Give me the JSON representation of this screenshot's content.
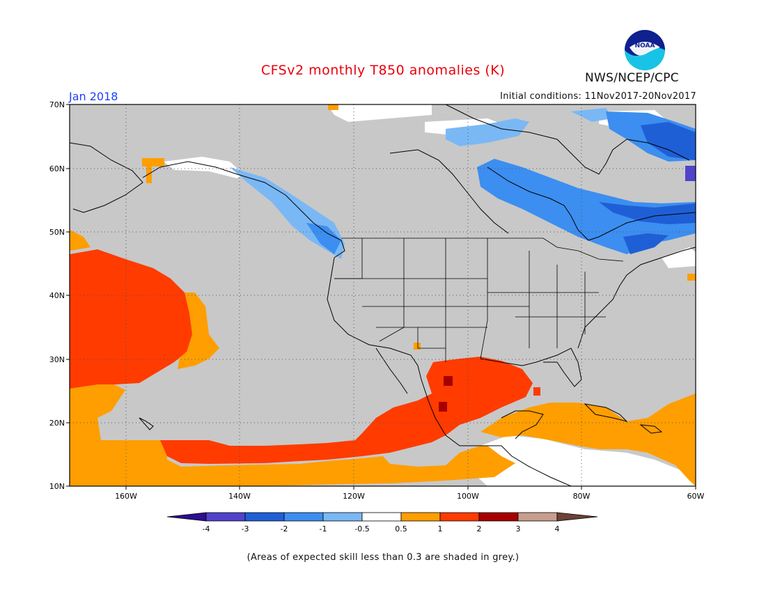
{
  "header": {
    "title": "CFSv2 monthly T850 anomalies (K)",
    "agency": "NWS/NCEP/CPC",
    "period": "Jan 2018",
    "initial_conditions": "Initial conditions: 11Nov2017-20Nov2017",
    "logo_text": "NOAA"
  },
  "map": {
    "lat_labels": [
      "70N",
      "60N",
      "50N",
      "40N",
      "30N",
      "20N",
      "10N"
    ],
    "lon_labels": [
      "160W",
      "140W",
      "120W",
      "100W",
      "80W",
      "60W"
    ],
    "background_color": "#c8c8c8"
  },
  "legend": {
    "tick_labels": [
      "-4",
      "-3",
      "-2",
      "-1",
      "-0.5",
      "0.5",
      "1",
      "2",
      "3",
      "4"
    ],
    "colors": [
      "#2d0f8f",
      "#5142cc",
      "#1f5fd6",
      "#3c8ef0",
      "#7ab8f5",
      "#ffffff",
      "#ff9e00",
      "#ff3b00",
      "#a70000",
      "#c79e8e",
      "#6b4235"
    ]
  },
  "footnote": "(Areas of expected skill less than 0.3 are shaded in grey.)"
}
